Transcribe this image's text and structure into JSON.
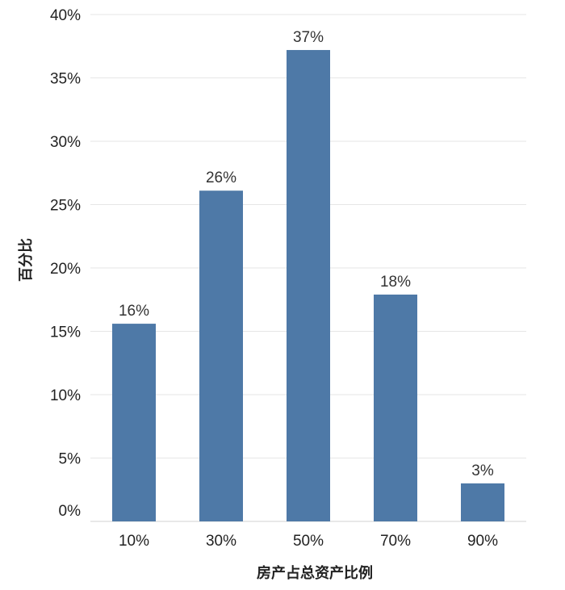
{
  "chart_data": {
    "type": "bar",
    "categories": [
      "10%",
      "30%",
      "50%",
      "70%",
      "90%"
    ],
    "values": [
      15.6,
      26.1,
      37.2,
      17.9,
      3.0
    ],
    "data_labels": [
      "16%",
      "26%",
      "37%",
      "18%",
      "3%"
    ],
    "title": "",
    "xlabel": "房产占总资产比例",
    "ylabel": "百分比",
    "ylim": [
      0,
      40
    ],
    "y_ticks": [
      0,
      5,
      10,
      15,
      20,
      25,
      30,
      35,
      40
    ],
    "y_tick_labels": [
      "0%",
      "5%",
      "10%",
      "15%",
      "20%",
      "25%",
      "30%",
      "35%",
      "40%"
    ],
    "bar_color": "#4e79a7",
    "grid": true,
    "legend": "none"
  }
}
